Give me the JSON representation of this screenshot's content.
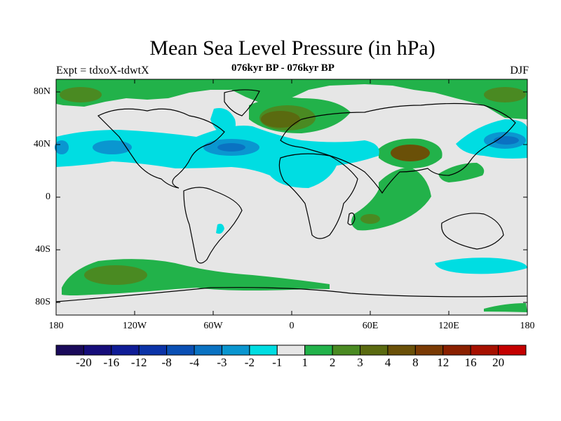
{
  "title": "Mean Sea Level Pressure (in hPa)",
  "subtitle": "076kyr BP - 076kyr BP",
  "left_label": "Expt = tdxoX-tdwtX",
  "right_label": "DJF",
  "y_ticks": [
    "80N",
    "40N",
    "0",
    "40S",
    "80S"
  ],
  "x_ticks": [
    "180",
    "120W",
    "60W",
    "0",
    "60E",
    "120E",
    "180"
  ],
  "colorbar": {
    "colors": [
      "#1a0a5a",
      "#160d7a",
      "#0f1c96",
      "#0b33a8",
      "#0a4fb4",
      "#0a72c2",
      "#0a96d0",
      "#00dde2",
      "#e6e6e6",
      "#22b24a",
      "#4a8a22",
      "#5a6a10",
      "#6a5008",
      "#7a3a04",
      "#8a2000",
      "#a61000",
      "#c40000"
    ],
    "labels": [
      "-20",
      "-16",
      "-12",
      "-8",
      "-4",
      "-3",
      "-2",
      "-1",
      "1",
      "2",
      "3",
      "4",
      "8",
      "12",
      "16",
      "20"
    ]
  },
  "colors": {
    "ocean_neutral": "#e6e6e6",
    "positive_light": "#22b24a",
    "positive_mid": "#4a8a22",
    "positive_dark": "#6a5008",
    "negative_light": "#00dde2",
    "negative_mid": "#0a72c2"
  }
}
